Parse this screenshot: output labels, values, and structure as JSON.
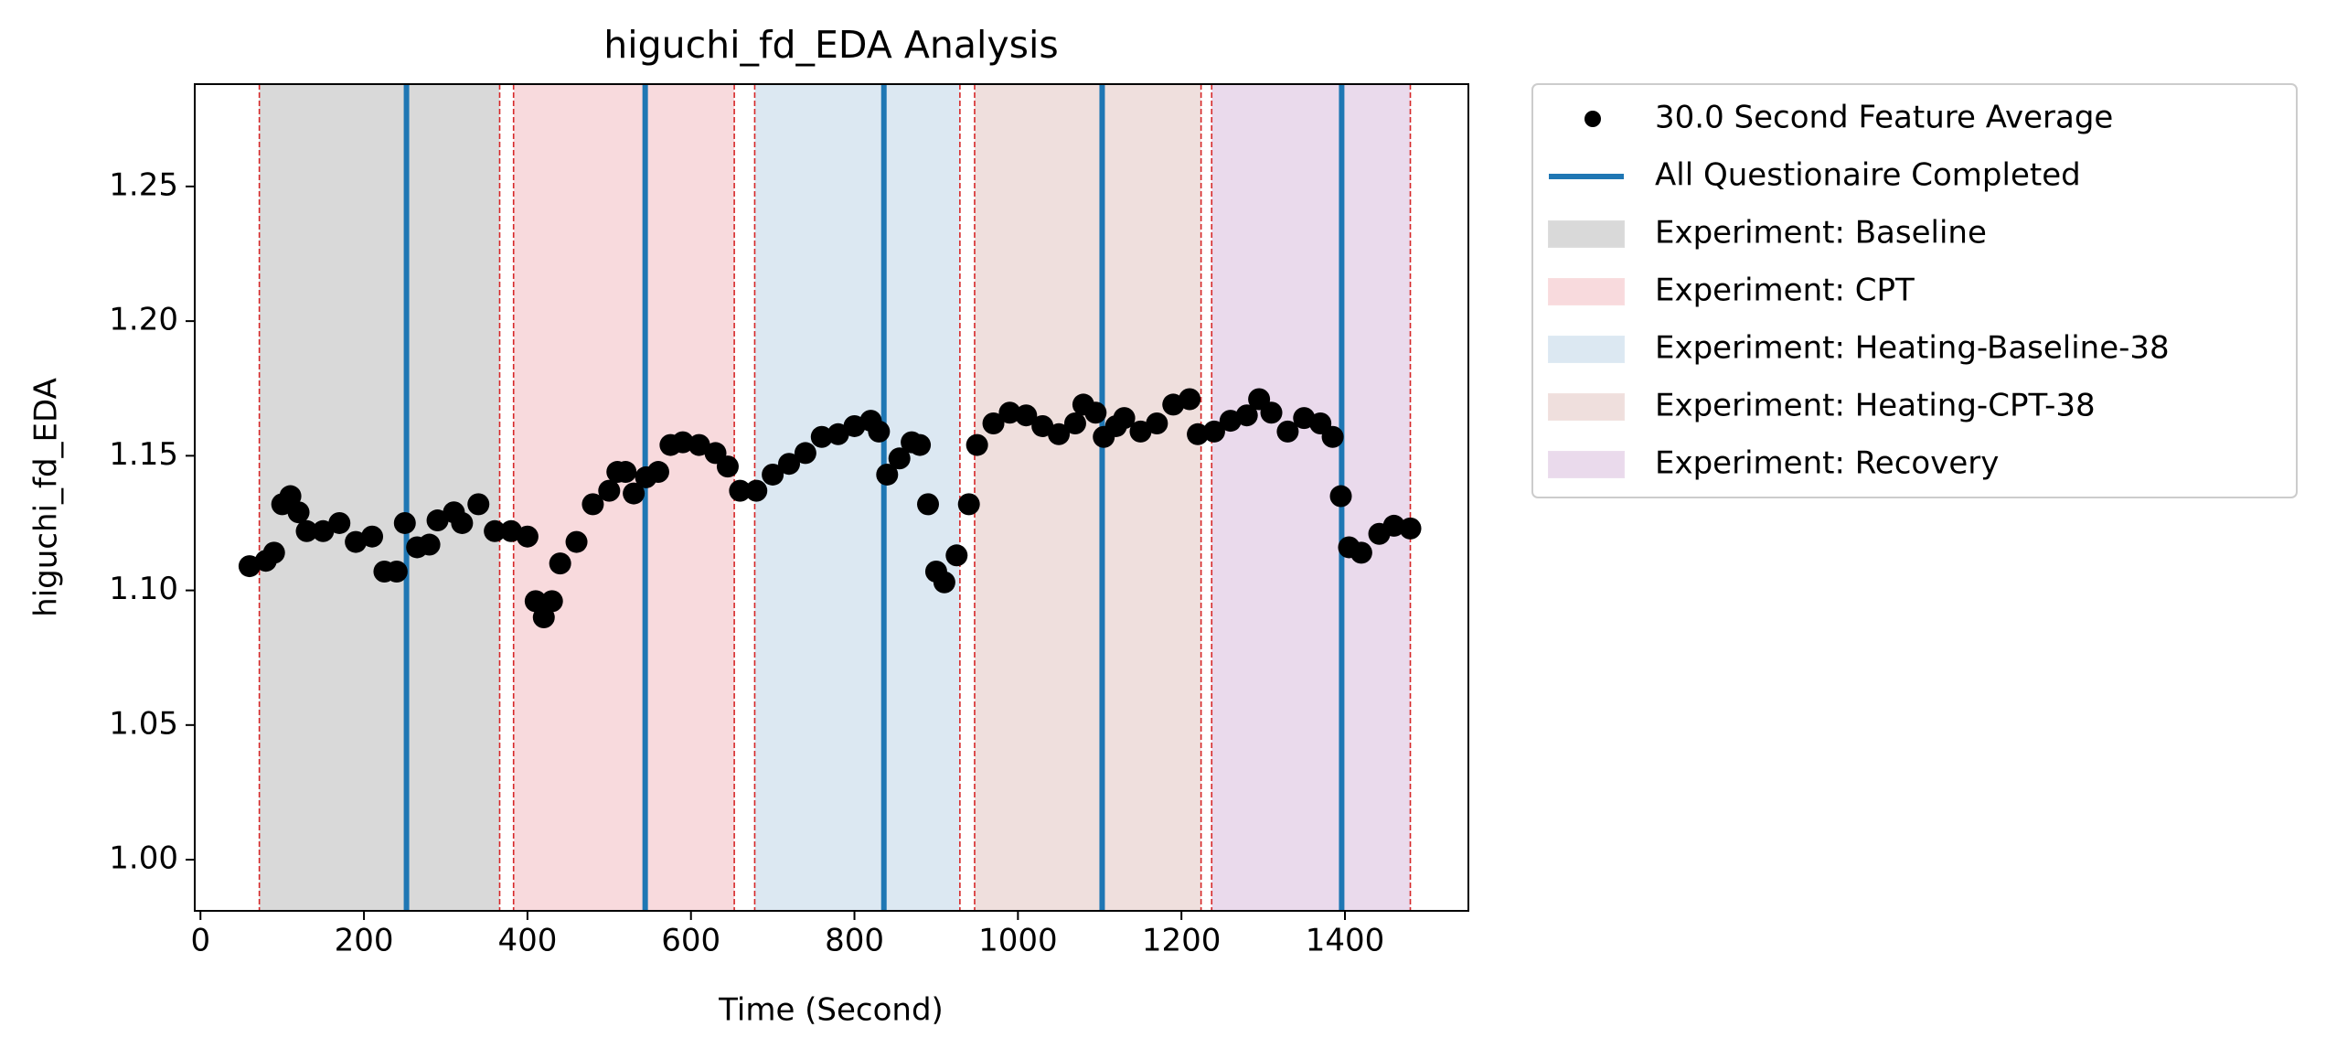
{
  "chart_data": {
    "type": "scatter",
    "title": "higuchi_fd_EDA Analysis",
    "x_label": "Time (Second)",
    "y_label": "higuchi_fd_EDA",
    "xlim": [
      -7,
      1551
    ],
    "ylim": [
      0.981,
      1.288
    ],
    "xticks": [
      0,
      200,
      400,
      600,
      800,
      1000,
      1200,
      1400
    ],
    "yticks": [
      {
        "value": 1.0,
        "label": "1.00"
      },
      1.05,
      {
        "value": 1.1,
        "label": "1.10"
      },
      1.15,
      {
        "value": 1.2,
        "label": "1.20"
      },
      1.25
    ],
    "series": [
      {
        "name": "30.0 Second Feature Average",
        "color": "#000000",
        "x": [
          60,
          80,
          90,
          100,
          110,
          120,
          130,
          150,
          170,
          190,
          210,
          225,
          240,
          250,
          265,
          280,
          290,
          310,
          320,
          340,
          360,
          380,
          400,
          410,
          420,
          430,
          440,
          460,
          480,
          500,
          510,
          520,
          530,
          545,
          560,
          575,
          590,
          610,
          630,
          645,
          660,
          680,
          700,
          720,
          740,
          760,
          780,
          800,
          820,
          830,
          840,
          855,
          870,
          880,
          890,
          900,
          910,
          925,
          940,
          950,
          970,
          990,
          1010,
          1030,
          1050,
          1070,
          1080,
          1095,
          1105,
          1120,
          1130,
          1150,
          1170,
          1190,
          1210,
          1220,
          1240,
          1260,
          1280,
          1295,
          1310,
          1330,
          1350,
          1370,
          1385,
          1395,
          1405,
          1420,
          1442,
          1460,
          1480
        ],
        "values": [
          1.109,
          1.111,
          1.114,
          1.132,
          1.135,
          1.129,
          1.122,
          1.122,
          1.125,
          1.118,
          1.12,
          1.107,
          1.107,
          1.125,
          1.116,
          1.117,
          1.126,
          1.129,
          1.125,
          1.132,
          1.122,
          1.122,
          1.12,
          1.096,
          1.09,
          1.096,
          1.11,
          1.118,
          1.132,
          1.137,
          1.144,
          1.144,
          1.136,
          1.142,
          1.144,
          1.154,
          1.155,
          1.154,
          1.151,
          1.146,
          1.137,
          1.137,
          1.143,
          1.147,
          1.151,
          1.157,
          1.158,
          1.161,
          1.163,
          1.159,
          1.143,
          1.149,
          1.155,
          1.154,
          1.132,
          1.107,
          1.103,
          1.113,
          1.132,
          1.154,
          1.162,
          1.166,
          1.165,
          1.161,
          1.158,
          1.162,
          1.169,
          1.166,
          1.157,
          1.161,
          1.164,
          1.159,
          1.162,
          1.169,
          1.171,
          1.158,
          1.159,
          1.163,
          1.165,
          1.171,
          1.166,
          1.159,
          1.164,
          1.162,
          1.157,
          1.135,
          1.116,
          1.114,
          1.121,
          1.124,
          1.123
        ]
      }
    ],
    "vlines": {
      "name": "All Questionaire Completed",
      "color": "#1f77b4",
      "x": [
        252,
        544,
        836,
        1103,
        1396
      ]
    },
    "spans": [
      {
        "name": "Experiment: Baseline",
        "color": "#d9d9d9",
        "start": 72,
        "end": 366
      },
      {
        "name": "Experiment: CPT",
        "color": "#f8dadd",
        "start": 383,
        "end": 653
      },
      {
        "name": "Experiment: Heating-Baseline-38",
        "color": "#dce8f2",
        "start": 678,
        "end": 929
      },
      {
        "name": "Experiment: Heating-CPT-38",
        "color": "#efdfdd",
        "start": 947,
        "end": 1224
      },
      {
        "name": "Experiment: Recovery",
        "color": "#eadaec",
        "start": 1237,
        "end": 1480
      }
    ],
    "edge_color": "#d62728"
  }
}
